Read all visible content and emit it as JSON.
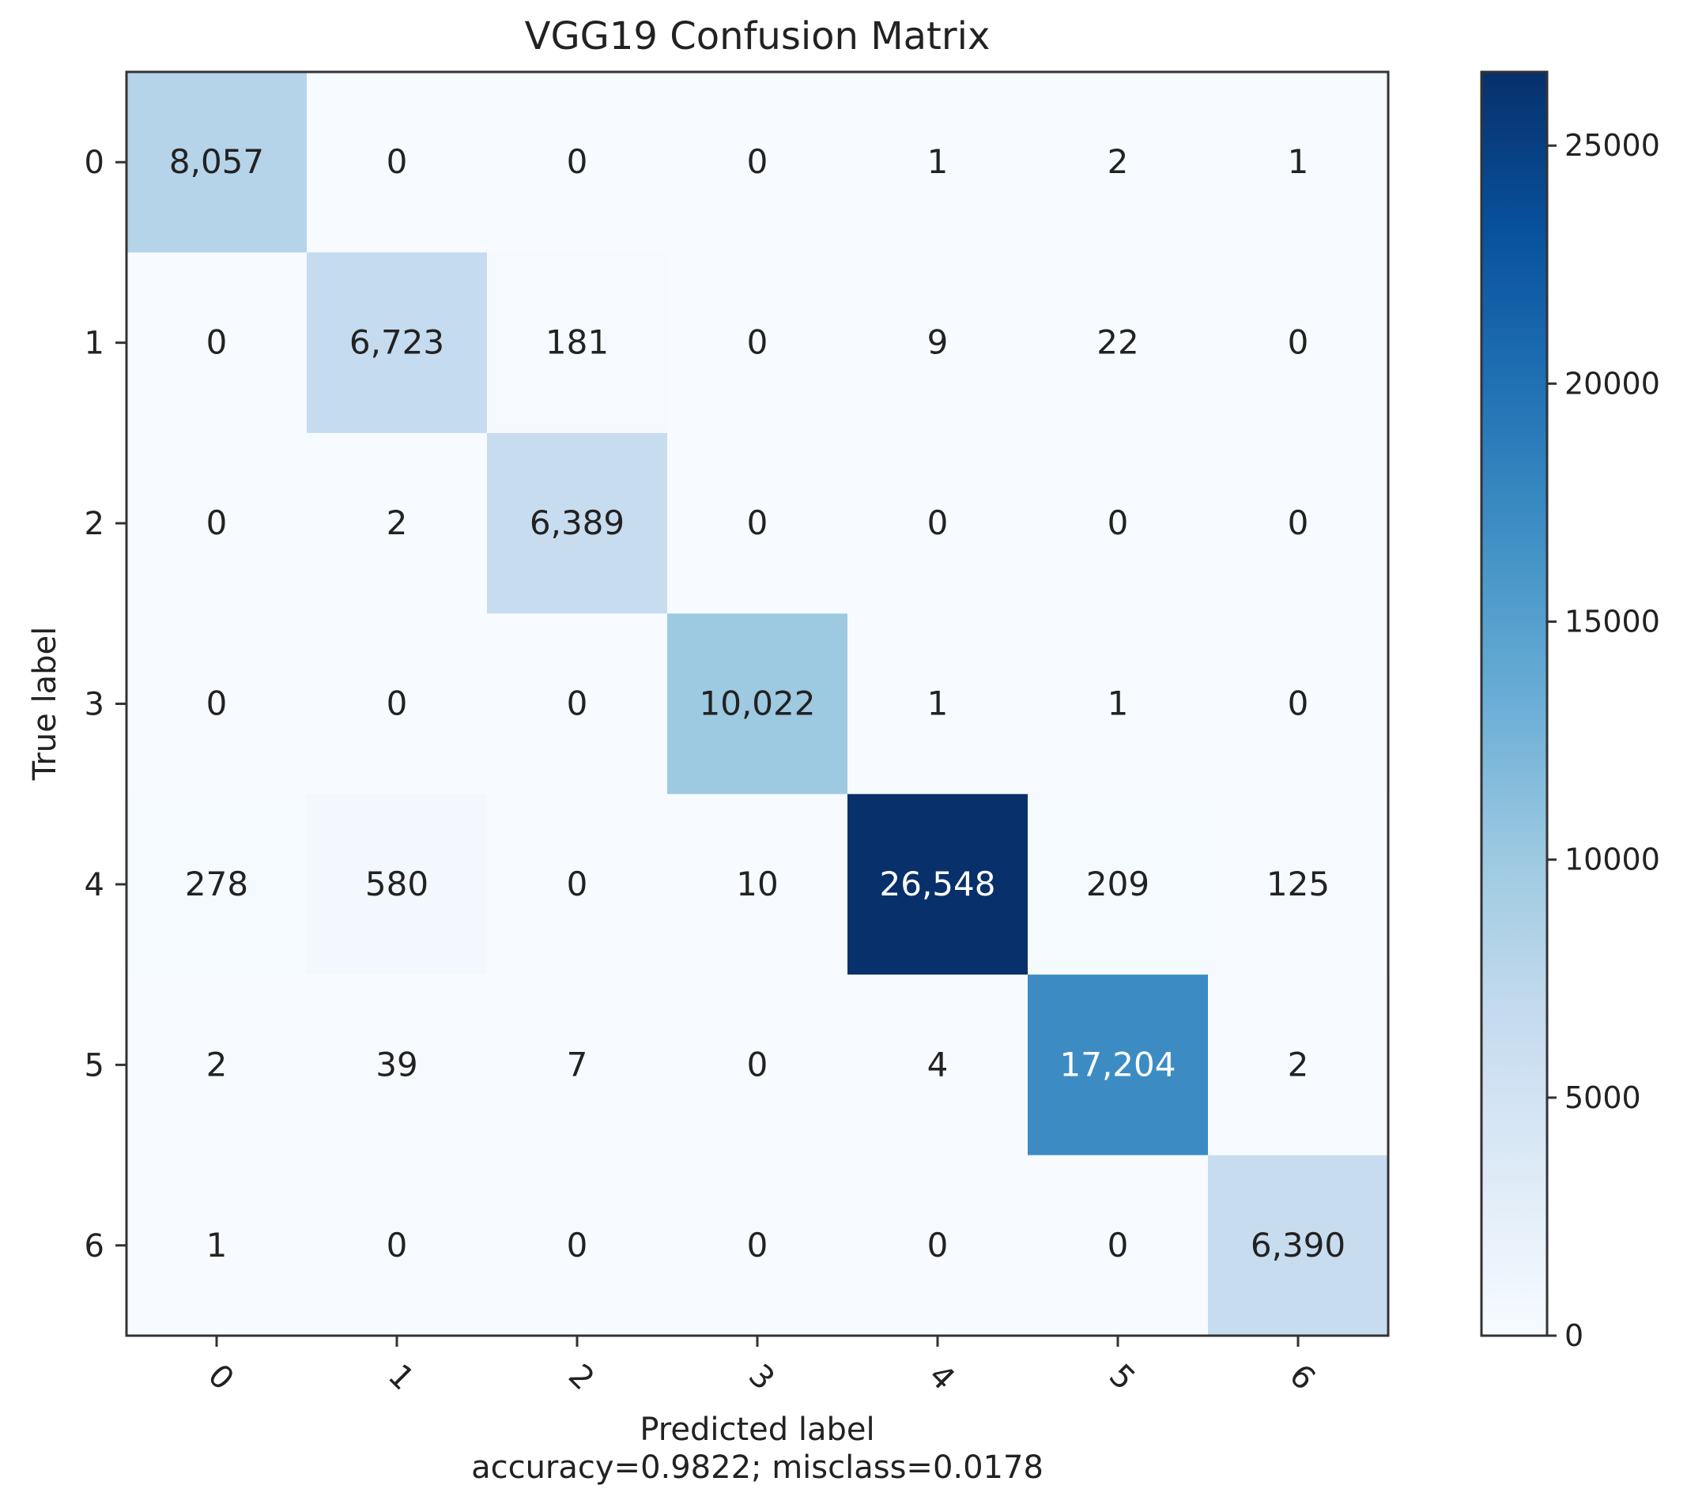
{
  "chart_data": {
    "type": "heatmap",
    "title": "VGG19 Confusion Matrix",
    "xlabel": "Predicted label",
    "xlabel_note": "accuracy=0.9822; misclass=0.0178",
    "ylabel": "True label",
    "x_categories": [
      "0",
      "1",
      "2",
      "3",
      "4",
      "5",
      "6"
    ],
    "y_categories": [
      "0",
      "1",
      "2",
      "3",
      "4",
      "5",
      "6"
    ],
    "values": [
      [
        8057,
        0,
        0,
        0,
        1,
        2,
        1
      ],
      [
        0,
        6723,
        181,
        0,
        9,
        22,
        0
      ],
      [
        0,
        2,
        6389,
        0,
        0,
        0,
        0
      ],
      [
        0,
        0,
        0,
        10022,
        1,
        1,
        0
      ],
      [
        278,
        580,
        0,
        10,
        26548,
        209,
        125
      ],
      [
        2,
        39,
        7,
        0,
        4,
        17204,
        2
      ],
      [
        1,
        0,
        0,
        0,
        0,
        0,
        6390
      ]
    ],
    "cell_labels": [
      [
        "8,057",
        "0",
        "0",
        "0",
        "1",
        "2",
        "1"
      ],
      [
        "0",
        "6,723",
        "181",
        "0",
        "9",
        "22",
        "0"
      ],
      [
        "0",
        "2",
        "6,389",
        "0",
        "0",
        "0",
        "0"
      ],
      [
        "0",
        "0",
        "0",
        "10,022",
        "1",
        "1",
        "0"
      ],
      [
        "278",
        "580",
        "0",
        "10",
        "26,548",
        "209",
        "125"
      ],
      [
        "2",
        "39",
        "7",
        "0",
        "4",
        "17,204",
        "2"
      ],
      [
        "1",
        "0",
        "0",
        "0",
        "0",
        "0",
        "6,390"
      ]
    ],
    "colorbar": {
      "ticks": [
        0,
        5000,
        10000,
        15000,
        20000,
        25000
      ],
      "tick_labels": [
        "0",
        "5000",
        "10000",
        "15000",
        "20000",
        "25000"
      ],
      "range": [
        0,
        26548
      ]
    },
    "colormap": "Blues",
    "colormap_stops": [
      "#f7fbff",
      "#deebf7",
      "#c6dbef",
      "#9ecae1",
      "#6baed6",
      "#4292c6",
      "#2171b5",
      "#08519c",
      "#08306b"
    ],
    "grid": false
  }
}
